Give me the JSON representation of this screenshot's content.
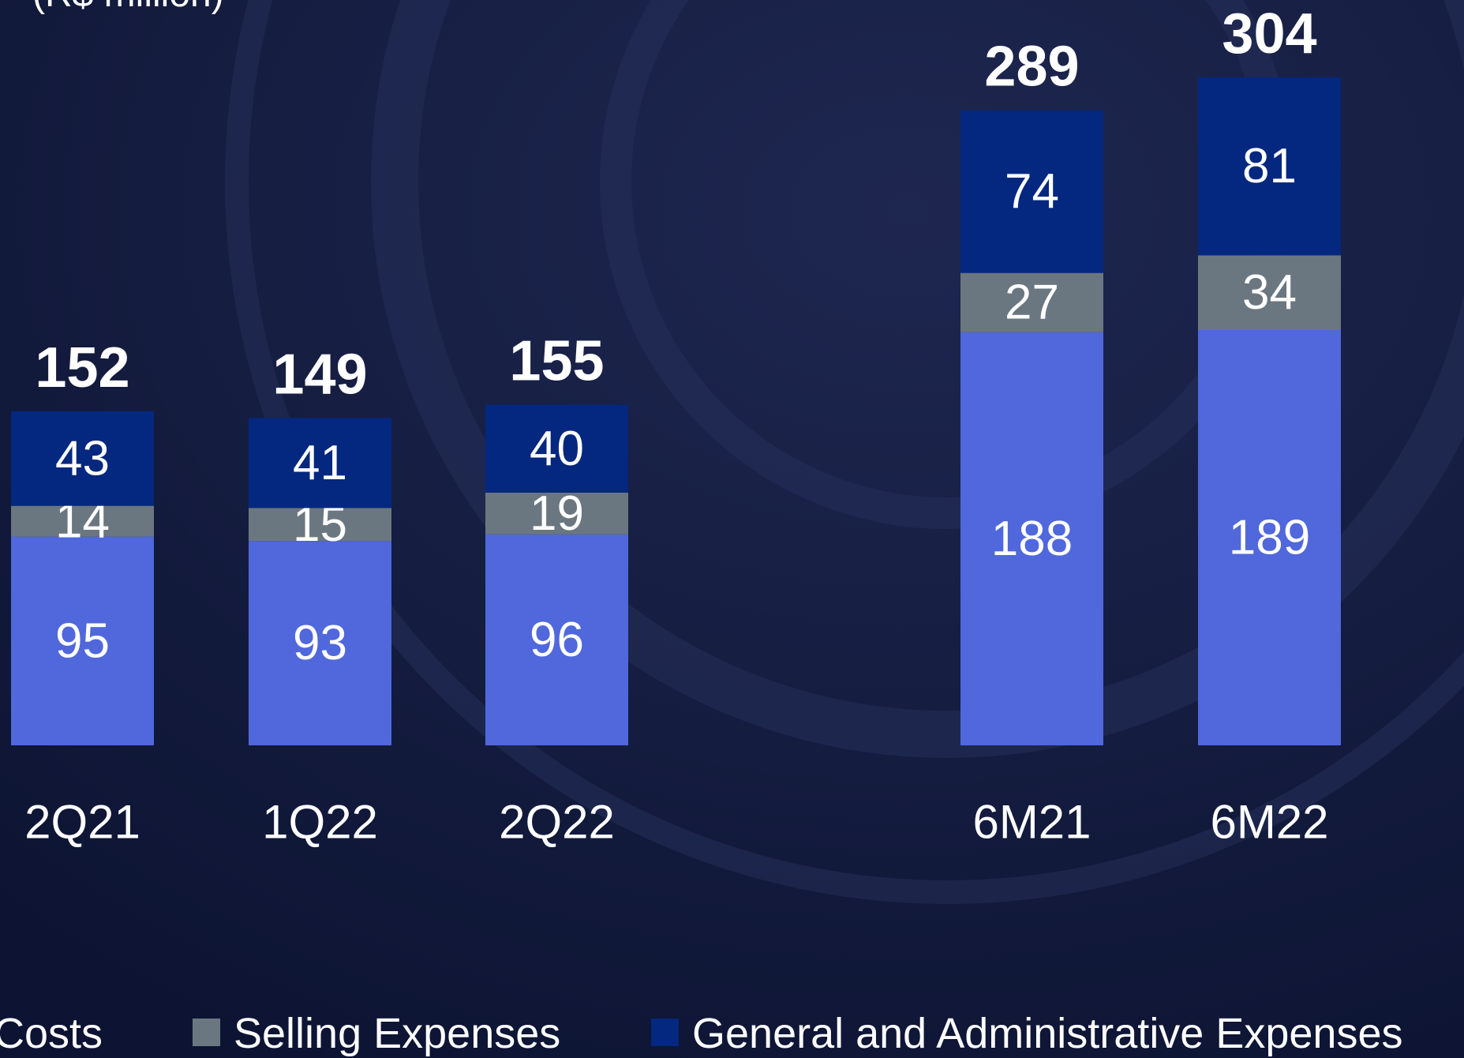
{
  "chart_data": {
    "type": "stacked_bar",
    "subtitle": "(R$ million)",
    "categories": [
      "2Q21",
      "1Q22",
      "2Q22",
      "6M21",
      "6M22"
    ],
    "series": [
      {
        "name": "Costs",
        "color": "#5068dc",
        "values": [
          95,
          93,
          96,
          188,
          189
        ]
      },
      {
        "name": "Selling Expenses",
        "color": "#6b7780",
        "values": [
          14,
          15,
          19,
          27,
          34
        ]
      },
      {
        "name": "General and Administrative Expenses",
        "color": "#04287f",
        "values": [
          43,
          41,
          40,
          74,
          81
        ]
      }
    ],
    "totals": [
      152,
      149,
      155,
      289,
      304
    ]
  }
}
